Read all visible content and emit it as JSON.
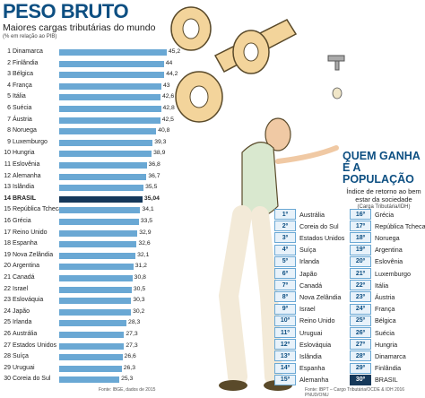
{
  "header": {
    "title": "PESO BRUTO",
    "subtitle": "Maiores cargas tributárias do mundo",
    "note": "(% em relação ao PIB)"
  },
  "chart_data": {
    "type": "bar",
    "orientation": "horizontal",
    "title": "Maiores cargas tributárias do mundo",
    "ylabel": "(% em relação ao PIB)",
    "xlim": [
      0,
      46
    ],
    "ranks": [
      "1",
      "2",
      "3",
      "4",
      "5",
      "6",
      "7",
      "8",
      "9",
      "10",
      "11",
      "12",
      "13",
      "14",
      "15",
      "16",
      "17",
      "18",
      "19",
      "20",
      "21",
      "22",
      "23",
      "24",
      "25",
      "26",
      "27",
      "28",
      "29",
      "30"
    ],
    "categories": [
      "Dinamarca",
      "Finlândia",
      "Bélgica",
      "França",
      "Itália",
      "Suécia",
      "Áustria",
      "Noruega",
      "Luxemburgo",
      "Hungria",
      "Eslovênia",
      "Alemanha",
      "Islândia",
      "BRASIL",
      "República Tcheca",
      "Grécia",
      "Reino Unido",
      "Espanha",
      "Nova Zelândia",
      "Argentina",
      "Canadá",
      "Israel",
      "Eslováquia",
      "Japão",
      "Irlanda",
      "Austrália",
      "Estados Unidos",
      "Suíça",
      "Uruguai",
      "Coreia do Sul"
    ],
    "values": [
      45.2,
      44,
      44.2,
      43,
      42.6,
      42.8,
      42.5,
      40.8,
      39.3,
      38.9,
      36.8,
      36.7,
      35.5,
      35.04,
      34.1,
      33.5,
      32.9,
      32.6,
      32.1,
      31.2,
      30.8,
      30.5,
      30.3,
      30.2,
      28.3,
      27.3,
      27.3,
      26.6,
      26.3,
      25.3
    ],
    "value_labels": [
      "45,2",
      "44",
      "44,2",
      "43",
      "42,6",
      "42,8",
      "42,5",
      "40,8",
      "39,3",
      "38,9",
      "36,8",
      "36,7",
      "35,5",
      "35,04",
      "34,1",
      "33,5",
      "32,9",
      "32,6",
      "32,1",
      "31,2",
      "30,8",
      "30,5",
      "30,3",
      "30,2",
      "28,3",
      "27,3",
      "27,3",
      "26,6",
      "26,3",
      "25,3"
    ],
    "highlight_index": 13,
    "colors": {
      "bar": "#6aa8d4",
      "highlight": "#15385a",
      "title": "#0d4f82"
    }
  },
  "sources": {
    "left": "Fonte: IBGE, dados de 2015",
    "right": "Fonte: IBPT – Cargo Tributária/OCDE & IDH 2016 PNUD/ONU"
  },
  "ranking": {
    "title_line1": "QUEM GANHA",
    "title_line2": "É A POPULAÇÃO",
    "subtitle": "Índice de retorno ao bem estar da sociedade",
    "note": "(Carga Tributária/IDH)",
    "left_positions": [
      "1º",
      "2º",
      "3º",
      "4º",
      "5º",
      "6º",
      "7º",
      "8º",
      "9º",
      "10º",
      "11º",
      "12º",
      "13º",
      "14º",
      "15º"
    ],
    "left_names": [
      "Austrália",
      "Coreia do Sul",
      "Estados Unidos",
      "Suíça",
      "Irlanda",
      "Japão",
      "Canadá",
      "Nova Zelândia",
      "Israel",
      "Reino Unido",
      "Uruguai",
      "Eslováquia",
      "Islândia",
      "Espanha",
      "Alemanha"
    ],
    "right_positions": [
      "16º",
      "17º",
      "18º",
      "19º",
      "20º",
      "21º",
      "22º",
      "23º",
      "24º",
      "25º",
      "26º",
      "27º",
      "28º",
      "29º",
      "30º"
    ],
    "right_names": [
      "Grécia",
      "República Tcheca",
      "Noruega",
      "Argentina",
      "Eslovênia",
      "Luxemburgo",
      "Itália",
      "Áustria",
      "França",
      "Bélgica",
      "Suécia",
      "Hungria",
      "Dinamarca",
      "Finlândia",
      "BRASIL"
    ]
  }
}
